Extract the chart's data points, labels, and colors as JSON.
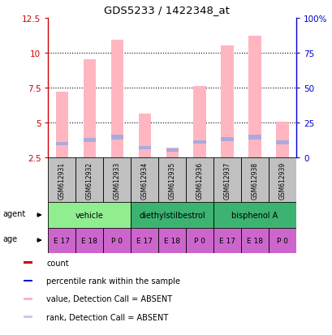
{
  "title": "GDS5233 / 1422348_at",
  "samples": [
    "GSM612931",
    "GSM612932",
    "GSM612933",
    "GSM612934",
    "GSM612935",
    "GSM612936",
    "GSM612937",
    "GSM612938",
    "GSM612939"
  ],
  "pink_bar_top": [
    7.2,
    9.5,
    10.9,
    5.6,
    3.2,
    7.6,
    10.5,
    11.2,
    5.05
  ],
  "pink_bar_bottom": [
    2.5,
    2.5,
    2.5,
    2.5,
    2.5,
    2.5,
    2.5,
    2.5,
    2.5
  ],
  "blue_seg_top": [
    3.6,
    3.9,
    4.1,
    3.3,
    3.1,
    3.7,
    3.95,
    4.1,
    3.7
  ],
  "blue_seg_bot": [
    3.35,
    3.6,
    3.75,
    3.05,
    2.9,
    3.45,
    3.65,
    3.75,
    3.4
  ],
  "ylim": [
    2.5,
    12.5
  ],
  "yticks_left": [
    2.5,
    5.0,
    7.5,
    10.0,
    12.5
  ],
  "ytick_labels_left": [
    "2.5",
    "5",
    "7.5",
    "10",
    "12.5"
  ],
  "yticks_right": [
    0,
    25,
    50,
    75,
    100
  ],
  "ytick_labels_right": [
    "0",
    "25",
    "50",
    "75",
    "100%"
  ],
  "agent_groups": [
    {
      "label": "vehicle",
      "color": "#90EE90",
      "span": [
        0,
        3
      ]
    },
    {
      "label": "diethylstilbestrol",
      "color": "#3CB371",
      "span": [
        3,
        6
      ]
    },
    {
      "label": "bisphenol A",
      "color": "#3CB371",
      "span": [
        6,
        9
      ]
    }
  ],
  "age_labels": [
    "E 17",
    "E 18",
    "P 0",
    "E 17",
    "E 18",
    "P 0",
    "E 17",
    "E 18",
    "P 0"
  ],
  "age_color": "#CC66CC",
  "pink_color": "#FFB6C1",
  "blue_color": "#AAAADD",
  "sample_box_color": "#C0C0C0",
  "left_axis_color": "#CC0000",
  "right_axis_color": "#0000CC",
  "legend_items": [
    {
      "color": "#CC0000",
      "label": "count"
    },
    {
      "color": "#0000CC",
      "label": "percentile rank within the sample"
    },
    {
      "color": "#FFB6C1",
      "label": "value, Detection Call = ABSENT"
    },
    {
      "color": "#C8C8FF",
      "label": "rank, Detection Call = ABSENT"
    }
  ]
}
